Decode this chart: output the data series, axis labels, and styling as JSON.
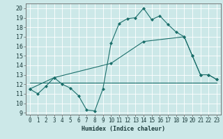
{
  "xlabel": "Humidex (Indice chaleur)",
  "bg_color": "#cce8e8",
  "line_color": "#1a6e6a",
  "xlim": [
    -0.5,
    23.5
  ],
  "ylim": [
    8.8,
    20.5
  ],
  "yticks": [
    9,
    10,
    11,
    12,
    13,
    14,
    15,
    16,
    17,
    18,
    19,
    20
  ],
  "xticks": [
    0,
    1,
    2,
    3,
    4,
    5,
    6,
    7,
    8,
    9,
    10,
    11,
    12,
    13,
    14,
    15,
    16,
    17,
    18,
    19,
    20,
    21,
    22,
    23
  ],
  "line1_x": [
    0,
    1,
    2,
    3,
    4,
    5,
    6,
    7,
    8,
    9,
    10,
    11,
    12,
    13,
    14,
    15,
    16,
    17,
    18,
    19,
    20,
    21,
    22,
    23
  ],
  "line1_y": [
    11.5,
    11.0,
    11.8,
    12.7,
    12.0,
    11.6,
    10.8,
    9.3,
    9.2,
    11.5,
    16.3,
    18.4,
    18.9,
    19.0,
    20.0,
    18.8,
    19.2,
    18.3,
    17.5,
    17.0,
    15.0,
    13.0,
    13.0,
    12.5
  ],
  "line2_x": [
    0,
    3,
    10,
    14,
    19,
    20,
    21,
    22,
    23
  ],
  "line2_y": [
    11.5,
    12.7,
    14.2,
    16.5,
    17.0,
    15.0,
    13.0,
    13.0,
    12.5
  ],
  "line3_x": [
    0,
    23
  ],
  "line3_y": [
    12.2,
    12.2
  ],
  "grid_color": "#b8d8d8",
  "spine_color": "#666666"
}
